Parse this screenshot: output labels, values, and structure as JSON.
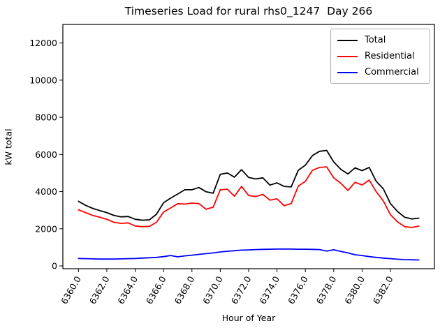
{
  "chart_data": {
    "type": "line",
    "title": "Timeseries Load for rural rhs0_1247  Day 266",
    "xlabel": "Hour of Year",
    "ylabel": "kW total",
    "xlim": [
      6358.9,
      6385.1
    ],
    "ylim": [
      -150,
      13000
    ],
    "grid": false,
    "legend_position": "upper right",
    "yticks": [
      0,
      2000,
      4000,
      6000,
      8000,
      10000,
      12000
    ],
    "xticks": [
      6360,
      6362,
      6364,
      6366,
      6368,
      6370,
      6372,
      6374,
      6376,
      6378,
      6380,
      6382
    ],
    "xtick_labels": [
      "6360.0",
      "6362.0",
      "6364.0",
      "6366.0",
      "6368.0",
      "6370.0",
      "6372.0",
      "6374.0",
      "6376.0",
      "6378.0",
      "6380.0",
      "6382.0"
    ],
    "xtick_rotation_deg": -60,
    "x": [
      6360.0,
      6360.5,
      6361.0,
      6361.5,
      6362.0,
      6362.5,
      6363.0,
      6363.5,
      6364.0,
      6364.5,
      6365.0,
      6365.5,
      6366.0,
      6366.5,
      6367.0,
      6367.5,
      6368.0,
      6368.5,
      6369.0,
      6369.5,
      6370.0,
      6370.5,
      6371.0,
      6371.5,
      6372.0,
      6372.5,
      6373.0,
      6373.5,
      6374.0,
      6374.5,
      6375.0,
      6375.5,
      6376.0,
      6376.5,
      6377.0,
      6377.5,
      6378.0,
      6378.5,
      6379.0,
      6379.5,
      6380.0,
      6380.5,
      6381.0,
      6381.5,
      6382.0,
      6382.5,
      6383.0,
      6383.5,
      6384.0
    ],
    "series": [
      {
        "name": "Total",
        "color": "#000000",
        "values": [
          3480,
          3260,
          3100,
          2980,
          2870,
          2720,
          2640,
          2660,
          2510,
          2460,
          2480,
          2780,
          3400,
          3650,
          3870,
          4100,
          4100,
          4220,
          3990,
          3910,
          4930,
          5000,
          4780,
          5180,
          4760,
          4680,
          4740,
          4350,
          4470,
          4280,
          4250,
          5150,
          5420,
          5940,
          6170,
          6220,
          5600,
          5200,
          4950,
          5280,
          5130,
          5300,
          4550,
          4150,
          3350,
          2930,
          2620,
          2530,
          2570
        ]
      },
      {
        "name": "Residential",
        "color": "#ff0000",
        "values": [
          3020,
          2870,
          2720,
          2620,
          2510,
          2350,
          2290,
          2320,
          2150,
          2110,
          2130,
          2350,
          2900,
          3120,
          3350,
          3330,
          3380,
          3350,
          3050,
          3160,
          4100,
          4130,
          3750,
          4280,
          3790,
          3730,
          3850,
          3540,
          3610,
          3240,
          3350,
          4300,
          4550,
          5150,
          5300,
          5330,
          4740,
          4450,
          4060,
          4500,
          4360,
          4620,
          3990,
          3500,
          2750,
          2370,
          2110,
          2070,
          2140
        ]
      },
      {
        "name": "Commercial",
        "color": "#0000ff",
        "values": [
          400,
          390,
          380,
          370,
          370,
          370,
          380,
          390,
          400,
          420,
          440,
          460,
          500,
          560,
          490,
          540,
          580,
          620,
          660,
          700,
          750,
          790,
          820,
          850,
          860,
          880,
          890,
          900,
          910,
          910,
          910,
          900,
          900,
          890,
          880,
          800,
          870,
          780,
          700,
          600,
          560,
          500,
          460,
          420,
          390,
          360,
          340,
          330,
          320
        ]
      }
    ]
  }
}
